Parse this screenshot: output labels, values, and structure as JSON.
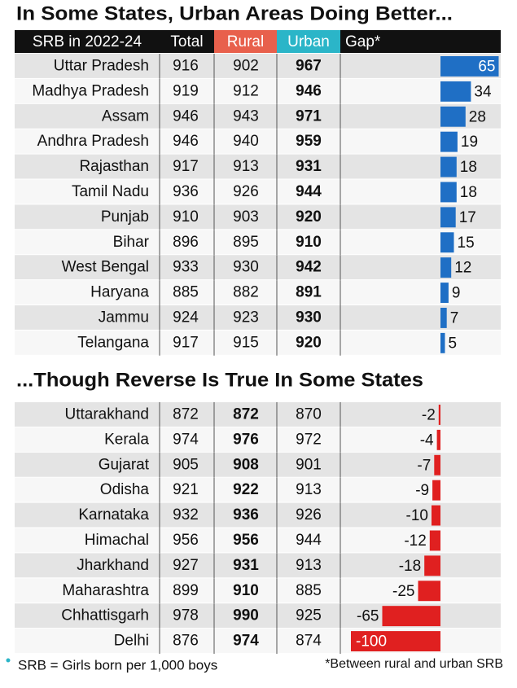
{
  "header": [
    "SRB in 2022-24",
    "Total",
    "Rural",
    "Urban",
    "Gap*"
  ],
  "sections": [
    {
      "title": "In Some States, Urban Areas Doing Better...",
      "rows": [
        [
          "Uttar Pradesh",
          916,
          902,
          967,
          65
        ],
        [
          "Madhya Pradesh",
          919,
          912,
          946,
          34
        ],
        [
          "Assam",
          946,
          943,
          971,
          28
        ],
        [
          "Andhra Pradesh",
          946,
          940,
          959,
          19
        ],
        [
          "Rajasthan",
          917,
          913,
          931,
          18
        ],
        [
          "Tamil Nadu",
          936,
          926,
          944,
          18
        ],
        [
          "Punjab",
          910,
          903,
          920,
          17
        ],
        [
          "Bihar",
          896,
          895,
          910,
          15
        ],
        [
          "West Bengal",
          933,
          930,
          942,
          12
        ],
        [
          "Haryana",
          885,
          882,
          891,
          9
        ],
        [
          "Jammu",
          924,
          923,
          930,
          7
        ],
        [
          "Telangana",
          917,
          915,
          920,
          5
        ]
      ]
    },
    {
      "title": "...Though Reverse Is True In Some States",
      "rows": [
        [
          "Uttarakhand",
          872,
          872,
          870,
          -2
        ],
        [
          "Kerala",
          974,
          976,
          972,
          -4
        ],
        [
          "Gujarat",
          905,
          908,
          901,
          -7
        ],
        [
          "Odisha",
          921,
          922,
          913,
          -9
        ],
        [
          "Karnataka",
          932,
          936,
          926,
          -10
        ],
        [
          "Himachal",
          956,
          956,
          944,
          -12
        ],
        [
          "Jharkhand",
          927,
          931,
          913,
          -18
        ],
        [
          "Maharashtra",
          899,
          910,
          885,
          -25
        ],
        [
          "Chhattisgarh",
          978,
          990,
          925,
          -65
        ],
        [
          "Delhi",
          876,
          974,
          874,
          -100
        ]
      ]
    }
  ],
  "footnotes": [
    "SRB = Girls born per 1,000 boys",
    "*Between rural and urban SRB"
  ]
}
